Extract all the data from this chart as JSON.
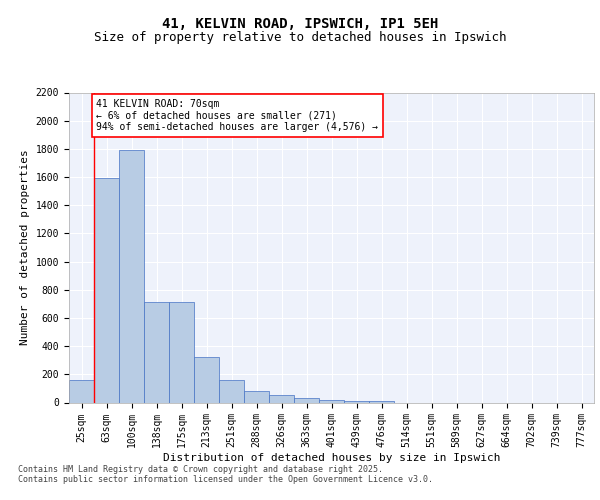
{
  "title_line1": "41, KELVIN ROAD, IPSWICH, IP1 5EH",
  "title_line2": "Size of property relative to detached houses in Ipswich",
  "xlabel": "Distribution of detached houses by size in Ipswich",
  "ylabel": "Number of detached properties",
  "categories": [
    "25sqm",
    "63sqm",
    "100sqm",
    "138sqm",
    "175sqm",
    "213sqm",
    "251sqm",
    "288sqm",
    "326sqm",
    "363sqm",
    "401sqm",
    "439sqm",
    "476sqm",
    "514sqm",
    "551sqm",
    "589sqm",
    "627sqm",
    "664sqm",
    "702sqm",
    "739sqm",
    "777sqm"
  ],
  "values": [
    160,
    1590,
    1790,
    710,
    710,
    320,
    160,
    80,
    50,
    30,
    20,
    10,
    10,
    0,
    0,
    0,
    0,
    0,
    0,
    0,
    0
  ],
  "bar_color": "#b8cce4",
  "bar_edge_color": "#4472c4",
  "annotation_box_text": "41 KELVIN ROAD: 70sqm\n← 6% of detached houses are smaller (271)\n94% of semi-detached houses are larger (4,576) →",
  "ylim": [
    0,
    2200
  ],
  "yticks": [
    0,
    200,
    400,
    600,
    800,
    1000,
    1200,
    1400,
    1600,
    1800,
    2000,
    2200
  ],
  "background_color": "#eef2fb",
  "footer_line1": "Contains HM Land Registry data © Crown copyright and database right 2025.",
  "footer_line2": "Contains public sector information licensed under the Open Government Licence v3.0.",
  "grid_color": "#ffffff",
  "title_fontsize": 10,
  "subtitle_fontsize": 9,
  "axis_label_fontsize": 8,
  "tick_fontsize": 7,
  "annotation_fontsize": 7,
  "footer_fontsize": 6
}
